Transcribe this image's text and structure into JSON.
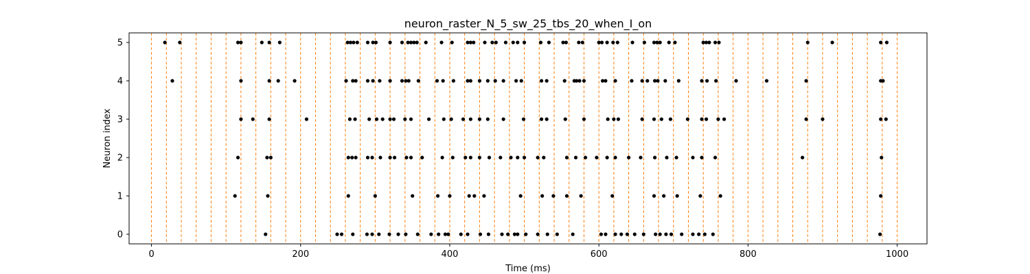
{
  "chart_data": {
    "type": "scatter",
    "title": "neuron_raster_N_5_sw_25_tbs_20_when_I_on",
    "xlabel": "Time (ms)",
    "ylabel": "Neuron index",
    "xlim": [
      -30,
      1040
    ],
    "ylim": [
      -0.25,
      5.25
    ],
    "x_ticks": [
      0,
      200,
      400,
      600,
      800,
      1000
    ],
    "y_ticks": [
      0,
      1,
      2,
      3,
      4,
      5
    ],
    "grid": false,
    "colors": {
      "spike": "#000000",
      "time_bin_line": "#ff7f0e",
      "axis": "#000000"
    },
    "time_bin_lines": [
      0,
      20,
      40,
      60,
      80,
      100,
      120,
      140,
      160,
      180,
      200,
      220,
      240,
      260,
      280,
      300,
      320,
      340,
      360,
      380,
      400,
      420,
      440,
      460,
      480,
      500,
      520,
      540,
      560,
      580,
      600,
      620,
      640,
      660,
      680,
      700,
      720,
      740,
      760,
      780,
      800,
      820,
      840,
      860,
      880,
      900,
      920,
      940,
      960,
      980,
      1000
    ],
    "series": [
      {
        "neuron": 5,
        "x": [
          18,
          38,
          116,
          120,
          148,
          158,
          172,
          263,
          267,
          271,
          276,
          290,
          297,
          301,
          320,
          336,
          344,
          348,
          352,
          356,
          368,
          389,
          403,
          424,
          428,
          432,
          447,
          457,
          462,
          475,
          485,
          491,
          500,
          522,
          533,
          552,
          556,
          573,
          578,
          600,
          604,
          611,
          619,
          625,
          645,
          661,
          674,
          678,
          682,
          694,
          702,
          740,
          744,
          748,
          756,
          761,
          880,
          913,
          978,
          986
        ]
      },
      {
        "neuron": 4,
        "x": [
          28,
          120,
          158,
          170,
          192,
          261,
          270,
          274,
          290,
          297,
          306,
          320,
          336,
          341,
          345,
          358,
          383,
          391,
          405,
          424,
          428,
          440,
          451,
          461,
          472,
          489,
          496,
          523,
          530,
          554,
          567,
          570,
          574,
          580,
          605,
          609,
          622,
          644,
          658,
          665,
          675,
          679,
          689,
          707,
          738,
          745,
          757,
          784,
          825,
          878,
          978,
          981
        ]
      },
      {
        "neuron": 3,
        "x": [
          120,
          136,
          158,
          208,
          266,
          273,
          292,
          302,
          310,
          320,
          325,
          340,
          348,
          372,
          392,
          402,
          418,
          428,
          440,
          451,
          472,
          499,
          523,
          530,
          555,
          580,
          612,
          620,
          626,
          658,
          674,
          684,
          696,
          719,
          738,
          744,
          760,
          768,
          878,
          900,
          978,
          985
        ]
      },
      {
        "neuron": 2,
        "x": [
          116,
          155,
          160,
          264,
          269,
          274,
          290,
          296,
          307,
          320,
          326,
          342,
          348,
          363,
          390,
          404,
          421,
          428,
          440,
          453,
          468,
          482,
          491,
          500,
          518,
          526,
          557,
          569,
          582,
          597,
          611,
          622,
          640,
          656,
          675,
          691,
          704,
          726,
          738,
          756,
          873,
          979
        ]
      },
      {
        "neuron": 1,
        "x": [
          112,
          156,
          264,
          300,
          350,
          384,
          400,
          426,
          433,
          446,
          495,
          524,
          539,
          557,
          576,
          618,
          674,
          687,
          705,
          736,
          763,
          978
        ]
      },
      {
        "neuron": 0,
        "x": [
          153,
          249,
          255,
          270,
          289,
          296,
          305,
          319,
          331,
          341,
          357,
          375,
          385,
          394,
          398,
          415,
          424,
          441,
          452,
          470,
          478,
          487,
          491,
          502,
          518,
          531,
          544,
          565,
          603,
          609,
          622,
          630,
          638,
          648,
          660,
          676,
          682,
          690,
          697,
          711,
          726,
          734,
          742,
          753,
          977
        ]
      }
    ]
  }
}
